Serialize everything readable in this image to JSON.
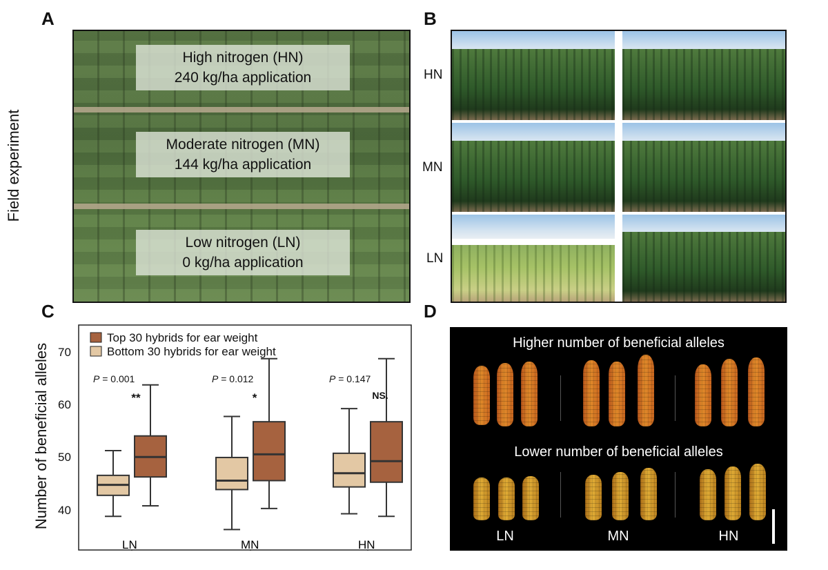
{
  "panels": {
    "a": "A",
    "b": "B",
    "c": "C",
    "d": "D"
  },
  "panel_a": {
    "ylabel": "Field experiment",
    "labels": [
      {
        "line1": "High nitrogen (HN)",
        "line2": "240 kg/ha application"
      },
      {
        "line1": "Moderate nitrogen (MN)",
        "line2": "144 kg/ha application"
      },
      {
        "line1": "Low nitrogen (LN)",
        "line2": "0 kg/ha application"
      }
    ]
  },
  "panel_b": {
    "rows": [
      "HN",
      "MN",
      "LN"
    ]
  },
  "chart_data": {
    "type": "box",
    "ylabel": "Number of beneficial alleles",
    "categories": [
      "LN",
      "MN",
      "HN"
    ],
    "ylim": [
      33,
      75
    ],
    "yticks": [
      40,
      50,
      60,
      70
    ],
    "colors": {
      "top": "#a6623f",
      "bottom": "#e3c8a4"
    },
    "series": [
      {
        "name": "Top 30 hybrids for ear weight",
        "boxes": [
          {
            "whisker_low": 41,
            "q1": 46.5,
            "median": 50.3,
            "q3": 54.3,
            "whisker_high": 64
          },
          {
            "whisker_low": 40.5,
            "q1": 45.8,
            "median": 50.8,
            "q3": 57,
            "whisker_high": 69
          },
          {
            "whisker_low": 39,
            "q1": 45.5,
            "median": 49.5,
            "q3": 57,
            "whisker_high": 69
          }
        ]
      },
      {
        "name": "Bottom 30 hybrids for ear weight",
        "boxes": [
          {
            "whisker_low": 39,
            "q1": 43,
            "median": 45,
            "q3": 46.8,
            "whisker_high": 51.5
          },
          {
            "whisker_low": 36.5,
            "q1": 44.1,
            "median": 45.8,
            "q3": 50.2,
            "whisker_high": 58
          },
          {
            "whisker_low": 39.5,
            "q1": 44.6,
            "median": 47.2,
            "q3": 51,
            "whisker_high": 59.5
          }
        ]
      }
    ],
    "annotations": [
      {
        "category": "LN",
        "p_label": "P",
        "p_value": "= 0.001",
        "sig": "**"
      },
      {
        "category": "MN",
        "p_label": "P",
        "p_value": "= 0.012",
        "sig": "*"
      },
      {
        "category": "HN",
        "p_label": "P",
        "p_value": "= 0.147",
        "sig": "NS."
      }
    ],
    "legend": "top-left"
  },
  "panel_d": {
    "title_high": "Higher number of beneficial alleles",
    "title_low": "Lower number of beneficial alleles",
    "labels": [
      "LN",
      "MN",
      "HN"
    ]
  }
}
